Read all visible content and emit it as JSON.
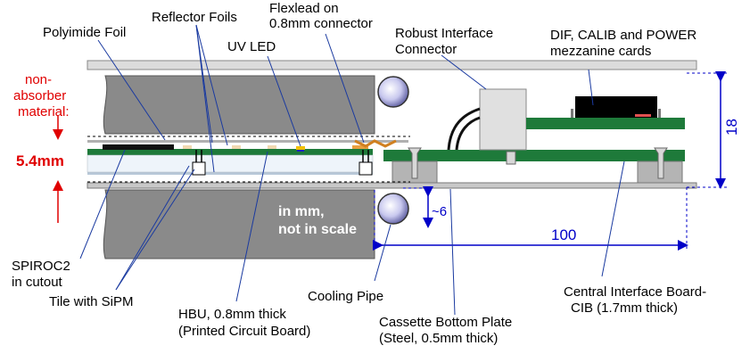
{
  "colors": {
    "absorber": "#808080",
    "pcb_green": "#1e7a3a",
    "label_black": "#000000",
    "non_absorber_red": "#e00000",
    "dimension_blue": "#0000c8"
  },
  "labels": {
    "polyimide_foil": "Polyimide Foil",
    "reflector_foils": "Reflector Foils",
    "flexlead_line1": "Flexlead on",
    "flexlead_line2": "0.8mm connector",
    "uv_led": "UV LED",
    "robust_line1": "Robust Interface",
    "robust_line2": "Connector",
    "mezz_line1": "DIF, CALIB and POWER",
    "mezz_line2": "mezzanine cards",
    "nonabs_line1": "non-",
    "nonabs_line2": "absorber",
    "nonabs_line3": "material:",
    "thickness": "5.4mm",
    "inmm_line1": "in mm,",
    "inmm_line2": "not in scale",
    "spiroc_line1": "SPIROC2",
    "spiroc_line2": "in cutout",
    "tile": "Tile with SiPM",
    "hbu_line1": "HBU, 0.8mm thick",
    "hbu_line2": "(Printed Circuit Board)",
    "cooling": "Cooling Pipe",
    "cassette_line1": "Cassette Bottom Plate",
    "cassette_line2": "(Steel, 0.5mm thick)",
    "cib_line1": "Central Interface Board-",
    "cib_line2": "CIB (1.7mm thick)"
  },
  "dimensions": {
    "height": "18",
    "gap": "~6",
    "length": "100"
  }
}
